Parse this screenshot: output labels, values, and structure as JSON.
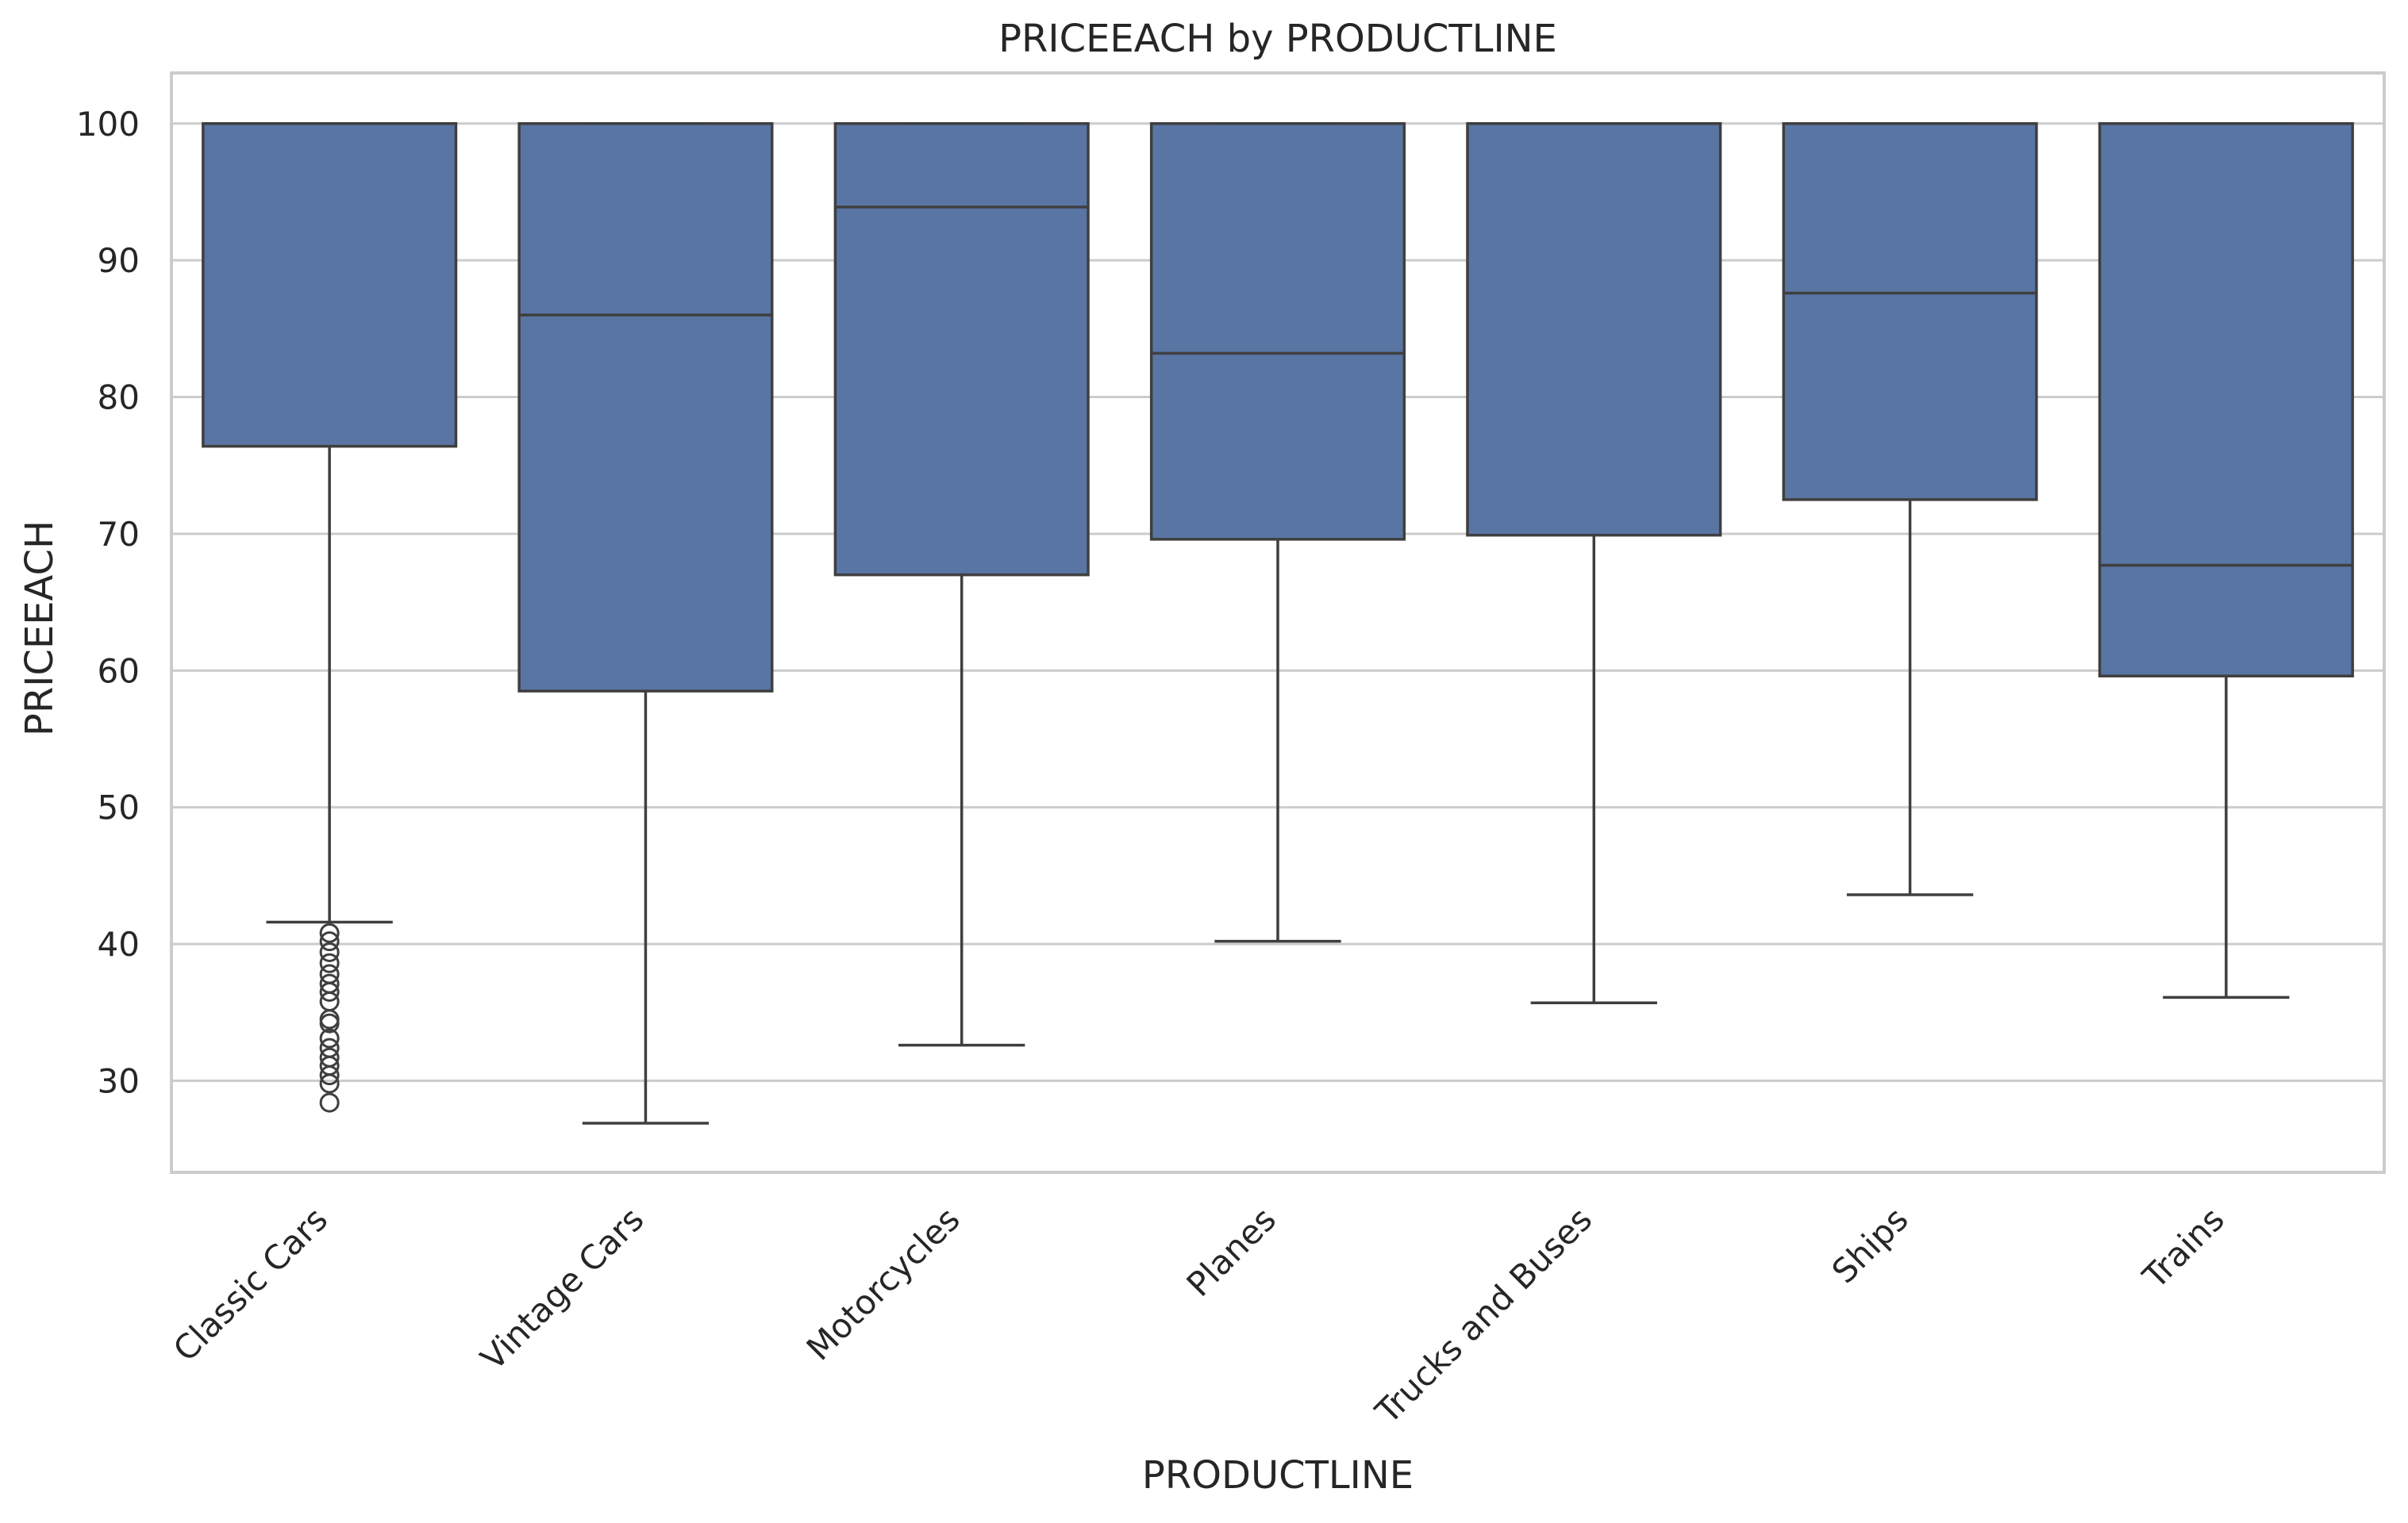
{
  "chart_data": {
    "type": "box",
    "title": "PRICEEACH by PRODUCTLINE",
    "xlabel": "PRODUCTLINE",
    "ylabel": "PRICEEACH",
    "ylim": [
      23.3,
      103.7
    ],
    "yticks": [
      30,
      40,
      50,
      60,
      70,
      80,
      90,
      100
    ],
    "grid": "horizontal",
    "colors": {
      "box_fill": "#5975a4",
      "line": "#3f3f3f",
      "grid": "#cccccc",
      "frame": "#cccccc"
    },
    "categories": [
      "Classic Cars",
      "Vintage Cars",
      "Motorcycles",
      "Planes",
      "Trucks and Buses",
      "Ships",
      "Trains"
    ],
    "boxes": [
      {
        "category": "Classic Cars",
        "whisker_low": 41.6,
        "q1": 76.4,
        "median": 100,
        "q3": 100,
        "whisker_high": 100,
        "outliers": [
          40.8,
          40.2,
          39.4,
          38.6,
          37.8,
          37.1,
          36.5,
          35.8,
          34.5,
          34.2,
          33.1,
          32.4,
          31.7,
          31.1,
          30.4,
          29.8,
          28.4
        ]
      },
      {
        "category": "Vintage Cars",
        "whisker_low": 26.9,
        "q1": 58.5,
        "median": 86.0,
        "q3": 100,
        "whisker_high": 100,
        "outliers": []
      },
      {
        "category": "Motorcycles",
        "whisker_low": 32.6,
        "q1": 67.0,
        "median": 93.9,
        "q3": 100,
        "whisker_high": 100,
        "outliers": []
      },
      {
        "category": "Planes",
        "whisker_low": 40.2,
        "q1": 69.6,
        "median": 83.2,
        "q3": 100,
        "whisker_high": 100,
        "outliers": []
      },
      {
        "category": "Trucks and Buses",
        "whisker_low": 35.7,
        "q1": 69.9,
        "median": 100,
        "q3": 100,
        "whisker_high": 100,
        "outliers": []
      },
      {
        "category": "Ships",
        "whisker_low": 43.6,
        "q1": 72.5,
        "median": 87.6,
        "q3": 100,
        "whisker_high": 100,
        "outliers": []
      },
      {
        "category": "Trains",
        "whisker_low": 36.1,
        "q1": 59.6,
        "median": 67.7,
        "q3": 100,
        "whisker_high": 100,
        "outliers": []
      }
    ]
  }
}
